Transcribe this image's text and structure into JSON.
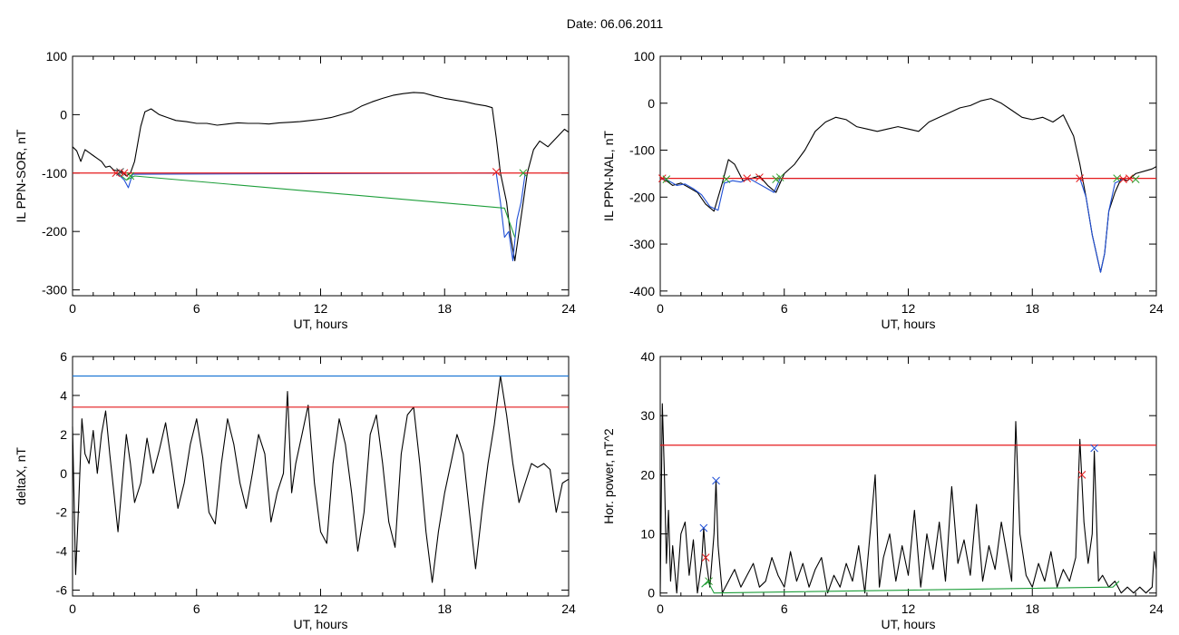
{
  "page_title": "Date:  06.06.2011",
  "chart_data": [
    {
      "type": "line",
      "title": "",
      "xlabel": "UT, hours",
      "ylabel": "IL PPN-SOR, nT",
      "xlim": [
        0,
        24
      ],
      "ylim": [
        -310,
        100
      ],
      "xticks": [
        0,
        6,
        12,
        18,
        24
      ],
      "yticks": [
        -300,
        -200,
        -100,
        0,
        100
      ],
      "threshold_lines": [
        {
          "y": -100,
          "color": "#e41a1c"
        }
      ],
      "series": [
        {
          "color": "#000000",
          "x": [
            0,
            0.2,
            0.4,
            0.6,
            0.8,
            1.0,
            1.2,
            1.4,
            1.6,
            1.8,
            2.0,
            2.2,
            2.4,
            2.6,
            2.8,
            3.0,
            3.3,
            3.5,
            3.8,
            4.2,
            4.6,
            5.0,
            5.5,
            6.0,
            6.5,
            7.0,
            7.5,
            8.0,
            8.5,
            9.0,
            9.5,
            10.0,
            10.5,
            11.0,
            11.5,
            12.0,
            12.5,
            13.0,
            13.5,
            14.0,
            14.5,
            15.0,
            15.5,
            16.0,
            16.5,
            17.0,
            17.5,
            18.0,
            18.5,
            19.0,
            19.5,
            20.0,
            20.3,
            20.5,
            20.7,
            21.0,
            21.2,
            21.4,
            21.6,
            21.8,
            22.0,
            22.3,
            22.6,
            23.0,
            23.4,
            23.8,
            24.0
          ],
          "y": [
            -55,
            -62,
            -80,
            -60,
            -65,
            -70,
            -75,
            -80,
            -90,
            -88,
            -95,
            -96,
            -98,
            -105,
            -100,
            -80,
            -20,
            5,
            10,
            0,
            -5,
            -10,
            -12,
            -15,
            -15,
            -18,
            -16,
            -14,
            -15,
            -15,
            -16,
            -14,
            -13,
            -12,
            -10,
            -8,
            -5,
            0,
            5,
            15,
            22,
            28,
            33,
            36,
            38,
            37,
            32,
            28,
            25,
            22,
            18,
            15,
            12,
            -40,
            -100,
            -150,
            -210,
            -250,
            -200,
            -150,
            -100,
            -60,
            -45,
            -55,
            -40,
            -25,
            -30
          ]
        },
        {
          "color": "#1f4fd6",
          "x": [
            2.1,
            2.3,
            2.5,
            2.7,
            2.9,
            20.5,
            20.7,
            20.9,
            21.1,
            21.3,
            21.5,
            21.7,
            21.9
          ],
          "y": [
            -100,
            -105,
            -112,
            -125,
            -102,
            -100,
            -150,
            -210,
            -200,
            -250,
            -180,
            -150,
            -100
          ]
        },
        {
          "color": "#1d9e3a",
          "x": [
            2.2,
            2.6,
            3.0,
            20.9,
            21.4
          ],
          "y": [
            -100,
            -112,
            -105,
            -160,
            -210
          ]
        }
      ],
      "markers": [
        {
          "x": 2.1,
          "y": -100,
          "color": "#e41a1c"
        },
        {
          "x": 2.3,
          "y": -98,
          "color": "#444444"
        },
        {
          "x": 2.5,
          "y": -100,
          "color": "#e41a1c"
        },
        {
          "x": 2.8,
          "y": -105,
          "color": "#2ca02c"
        },
        {
          "x": 20.5,
          "y": -98,
          "color": "#e41a1c"
        },
        {
          "x": 21.8,
          "y": -100,
          "color": "#2ca02c"
        }
      ]
    },
    {
      "type": "line",
      "title": "",
      "xlabel": "UT, hours",
      "ylabel": "IL PPN-NAL, nT",
      "xlim": [
        0,
        24
      ],
      "ylim": [
        -410,
        100
      ],
      "xticks": [
        0,
        6,
        12,
        18,
        24
      ],
      "yticks": [
        -400,
        -300,
        -200,
        -100,
        0,
        100
      ],
      "threshold_lines": [
        {
          "y": -160,
          "color": "#e41a1c"
        }
      ],
      "series": [
        {
          "color": "#000000",
          "x": [
            0,
            0.3,
            0.6,
            1.0,
            1.4,
            1.8,
            2.2,
            2.6,
            3.0,
            3.3,
            3.6,
            4.0,
            4.4,
            4.8,
            5.2,
            5.6,
            6.0,
            6.5,
            7.0,
            7.5,
            8.0,
            8.5,
            9.0,
            9.5,
            10.0,
            10.5,
            11.0,
            11.5,
            12.0,
            12.5,
            13.0,
            13.5,
            14.0,
            14.5,
            15.0,
            15.5,
            16.0,
            16.5,
            17.0,
            17.5,
            18.0,
            18.5,
            19.0,
            19.5,
            20.0,
            20.3,
            20.6,
            20.9,
            21.1,
            21.3,
            21.5,
            21.7,
            22.0,
            22.3,
            22.6,
            23.0,
            23.4,
            23.8,
            24.0
          ],
          "y": [
            -160,
            -165,
            -175,
            -170,
            -180,
            -190,
            -215,
            -230,
            -170,
            -120,
            -130,
            -165,
            -160,
            -155,
            -175,
            -190,
            -150,
            -130,
            -100,
            -60,
            -40,
            -30,
            -35,
            -50,
            -55,
            -60,
            -55,
            -50,
            -55,
            -60,
            -40,
            -30,
            -20,
            -10,
            -5,
            5,
            10,
            0,
            -15,
            -30,
            -35,
            -30,
            -40,
            -25,
            -70,
            -130,
            -200,
            -280,
            -320,
            -360,
            -320,
            -230,
            -190,
            -160,
            -165,
            -150,
            -145,
            -140,
            -135
          ]
        },
        {
          "color": "#1f4fd6",
          "x": [
            0,
            0.4,
            0.8,
            1.2,
            1.6,
            2.0,
            2.4,
            2.8,
            3.1,
            3.5,
            3.9,
            4.3,
            4.7,
            5.1,
            5.5,
            5.8,
            20.3,
            20.6,
            20.9,
            21.1,
            21.3,
            21.5,
            21.7,
            22.0,
            22.4
          ],
          "y": [
            -160,
            -165,
            -175,
            -172,
            -182,
            -195,
            -220,
            -228,
            -170,
            -165,
            -168,
            -160,
            -170,
            -180,
            -190,
            -160,
            -160,
            -200,
            -280,
            -320,
            -360,
            -320,
            -230,
            -170,
            -162
          ]
        }
      ],
      "markers": [
        {
          "x": 0.1,
          "y": -160,
          "color": "#e41a1c"
        },
        {
          "x": 0.3,
          "y": -162,
          "color": "#2ca02c"
        },
        {
          "x": 3.2,
          "y": -162,
          "color": "#2ca02c"
        },
        {
          "x": 4.2,
          "y": -160,
          "color": "#e41a1c"
        },
        {
          "x": 4.8,
          "y": -158,
          "color": "#e41a1c"
        },
        {
          "x": 5.6,
          "y": -162,
          "color": "#2ca02c"
        },
        {
          "x": 5.8,
          "y": -158,
          "color": "#2ca02c"
        },
        {
          "x": 20.3,
          "y": -160,
          "color": "#e41a1c"
        },
        {
          "x": 22.1,
          "y": -160,
          "color": "#2ca02c"
        },
        {
          "x": 22.4,
          "y": -162,
          "color": "#e41a1c"
        },
        {
          "x": 22.7,
          "y": -160,
          "color": "#e41a1c"
        },
        {
          "x": 23.0,
          "y": -162,
          "color": "#2ca02c"
        }
      ]
    },
    {
      "type": "line",
      "title": "",
      "xlabel": "UT, hours",
      "ylabel": "deltaX, nT",
      "xlim": [
        0,
        24
      ],
      "ylim": [
        -6.3,
        6
      ],
      "xticks": [
        0,
        6,
        12,
        18,
        24
      ],
      "yticks": [
        -6,
        -4,
        -2,
        0,
        2,
        4,
        6
      ],
      "threshold_lines": [
        {
          "y": 5.0,
          "color": "#1f77d4"
        },
        {
          "y": 3.4,
          "color": "#e41a1c"
        }
      ],
      "series": [
        {
          "color": "#000000",
          "x": [
            0,
            0.15,
            0.3,
            0.45,
            0.6,
            0.8,
            1.0,
            1.2,
            1.4,
            1.6,
            1.8,
            2.0,
            2.2,
            2.4,
            2.6,
            2.8,
            3.0,
            3.3,
            3.6,
            3.9,
            4.2,
            4.5,
            4.8,
            5.1,
            5.4,
            5.7,
            6.0,
            6.3,
            6.6,
            6.9,
            7.2,
            7.5,
            7.8,
            8.1,
            8.4,
            8.7,
            9.0,
            9.3,
            9.6,
            9.9,
            10.2,
            10.4,
            10.6,
            10.8,
            11.1,
            11.4,
            11.7,
            12.0,
            12.3,
            12.6,
            12.9,
            13.2,
            13.5,
            13.8,
            14.1,
            14.4,
            14.7,
            15.0,
            15.3,
            15.6,
            15.9,
            16.2,
            16.5,
            16.8,
            17.1,
            17.4,
            17.7,
            18.0,
            18.3,
            18.6,
            18.9,
            19.2,
            19.5,
            19.8,
            20.1,
            20.4,
            20.7,
            21.0,
            21.3,
            21.6,
            21.9,
            22.2,
            22.5,
            22.8,
            23.1,
            23.4,
            23.7,
            24.0
          ],
          "y": [
            2.4,
            -5.2,
            -1.5,
            2.8,
            1.0,
            0.5,
            2.2,
            0.0,
            2.0,
            3.2,
            1.0,
            -1.0,
            -3.0,
            -0.5,
            2.0,
            0.5,
            -1.5,
            -0.5,
            1.8,
            0.0,
            1.2,
            2.6,
            0.5,
            -1.8,
            -0.5,
            1.5,
            2.8,
            0.8,
            -2.0,
            -2.6,
            0.5,
            2.8,
            1.5,
            -0.5,
            -1.8,
            0.0,
            2.0,
            1.0,
            -2.5,
            -1.0,
            0.0,
            4.2,
            -1.0,
            0.5,
            2.0,
            3.5,
            -0.5,
            -3.0,
            -3.6,
            0.5,
            2.8,
            1.5,
            -1.0,
            -4.0,
            -2.0,
            2.0,
            3.0,
            0.5,
            -2.5,
            -3.8,
            1.0,
            3.0,
            3.4,
            0.5,
            -3.0,
            -5.6,
            -3.0,
            -1.0,
            0.5,
            2.0,
            1.0,
            -2.0,
            -4.9,
            -2.0,
            0.5,
            2.5,
            5.0,
            3.0,
            0.5,
            -1.5,
            -0.5,
            0.5,
            0.3,
            0.5,
            0.2,
            -2.0,
            -0.5,
            -0.3
          ]
        }
      ],
      "markers": []
    },
    {
      "type": "line",
      "title": "",
      "xlabel": "UT, hours",
      "ylabel": "Hor. power, nT^2",
      "xlim": [
        0,
        24
      ],
      "ylim": [
        -0.5,
        40
      ],
      "xticks": [
        0,
        6,
        12,
        18,
        24
      ],
      "yticks": [
        0,
        10,
        20,
        30,
        40
      ],
      "threshold_lines": [
        {
          "y": 25,
          "color": "#e41a1c"
        }
      ],
      "series": [
        {
          "color": "#000000",
          "x": [
            0,
            0.1,
            0.2,
            0.3,
            0.4,
            0.5,
            0.6,
            0.8,
            1.0,
            1.2,
            1.4,
            1.6,
            1.8,
            2.0,
            2.1,
            2.2,
            2.4,
            2.6,
            2.7,
            2.8,
            3.0,
            3.3,
            3.6,
            3.9,
            4.2,
            4.5,
            4.8,
            5.1,
            5.4,
            5.7,
            6.0,
            6.3,
            6.6,
            6.9,
            7.2,
            7.5,
            7.8,
            8.1,
            8.4,
            8.7,
            9.0,
            9.3,
            9.6,
            9.9,
            10.2,
            10.4,
            10.6,
            10.8,
            11.1,
            11.4,
            11.7,
            12.0,
            12.3,
            12.6,
            12.9,
            13.2,
            13.5,
            13.8,
            14.1,
            14.4,
            14.7,
            15.0,
            15.3,
            15.6,
            15.9,
            16.2,
            16.5,
            16.8,
            17.0,
            17.2,
            17.4,
            17.7,
            18.0,
            18.3,
            18.6,
            18.9,
            19.2,
            19.5,
            19.8,
            20.1,
            20.3,
            20.5,
            20.7,
            20.9,
            21.0,
            21.2,
            21.4,
            21.7,
            22.0,
            22.3,
            22.6,
            22.9,
            23.2,
            23.5,
            23.8,
            23.9,
            24.0
          ],
          "y": [
            0,
            32,
            20,
            5,
            14,
            2,
            8,
            0,
            10,
            12,
            3,
            9,
            0,
            5,
            11,
            6,
            1,
            10,
            19,
            8,
            0,
            2,
            4,
            1,
            3,
            5,
            1,
            2,
            6,
            3,
            1,
            7,
            2,
            5,
            1,
            4,
            6,
            0,
            3,
            1,
            5,
            2,
            8,
            0,
            12,
            20,
            1,
            6,
            10,
            2,
            8,
            3,
            14,
            1,
            10,
            4,
            12,
            2,
            18,
            5,
            9,
            3,
            15,
            2,
            8,
            4,
            12,
            6,
            2,
            29,
            10,
            3,
            1,
            5,
            2,
            7,
            1,
            4,
            2,
            6,
            26,
            12,
            5,
            10,
            24,
            2,
            3,
            1,
            2,
            0,
            1,
            0,
            1,
            0,
            1,
            7,
            4
          ]
        },
        {
          "color": "#1d9e3a",
          "x": [
            2.0,
            2.3,
            2.6,
            21.9,
            22.2
          ],
          "y": [
            1,
            2,
            0,
            1,
            2
          ]
        }
      ],
      "markers": [
        {
          "x": 2.1,
          "y": 11,
          "color": "#1f4fd6"
        },
        {
          "x": 2.2,
          "y": 6,
          "color": "#e41a1c"
        },
        {
          "x": 2.35,
          "y": 2,
          "color": "#2ca02c"
        },
        {
          "x": 2.7,
          "y": 19,
          "color": "#1f4fd6"
        },
        {
          "x": 20.4,
          "y": 20,
          "color": "#e41a1c"
        },
        {
          "x": 21.0,
          "y": 24.5,
          "color": "#1f4fd6"
        }
      ]
    }
  ]
}
